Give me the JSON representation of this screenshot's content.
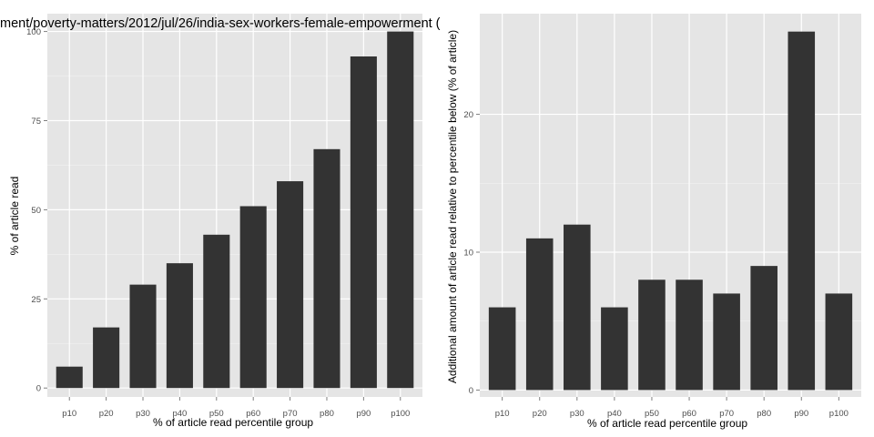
{
  "chart_data": [
    {
      "type": "bar",
      "title": "ment/poverty-matters/2012/jul/26/india-sex-workers-female-empowerment (",
      "categories": [
        "p10",
        "p20",
        "p30",
        "p40",
        "p50",
        "p60",
        "p70",
        "p80",
        "p90",
        "p100"
      ],
      "values": [
        6,
        17,
        29,
        35,
        43,
        51,
        58,
        67,
        93,
        100
      ],
      "xlabel": "% of article read percentile group",
      "ylabel": "% of article read",
      "ylim": [
        -2.5,
        105
      ],
      "yticks": [
        0,
        25,
        50,
        75,
        100
      ],
      "grid": true,
      "colors": {
        "panel": "#e5e5e5",
        "grid_major": "#ffffff",
        "grid_minor": "#f2f2f2",
        "bar": "#333333"
      }
    },
    {
      "type": "bar",
      "title": "",
      "categories": [
        "p10",
        "p20",
        "p30",
        "p40",
        "p50",
        "p60",
        "p70",
        "p80",
        "p90",
        "p100"
      ],
      "values": [
        6,
        11,
        12,
        6,
        8,
        8,
        7,
        9,
        26,
        7
      ],
      "xlabel": "% of article read percentile group",
      "ylabel": "Additional amount of article read relative to percentile below (% of article)",
      "ylim": [
        -0.5,
        27.3
      ],
      "yticks": [
        0,
        10,
        20
      ],
      "grid": true,
      "colors": {
        "panel": "#e5e5e5",
        "grid_major": "#ffffff",
        "grid_minor": "#f2f2f2",
        "bar": "#333333"
      }
    }
  ]
}
